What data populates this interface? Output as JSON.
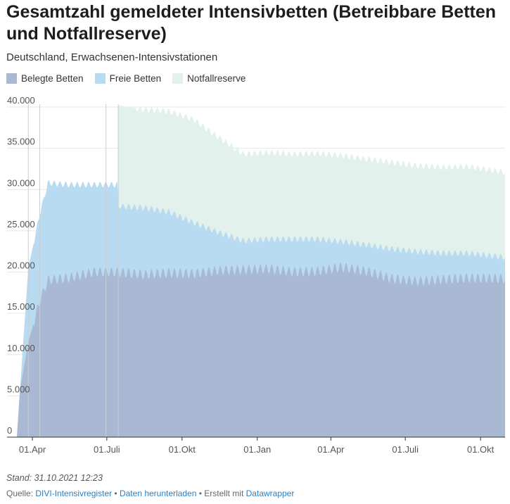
{
  "title": "Gesamtzahl gemeldeter Intensivbetten (Betreibbare Betten und Notfallreserve)",
  "subtitle": "Deutschland, Erwachsenen-Intensivstationen",
  "footer": {
    "stand": "Stand: 31.10.2021 12:23",
    "source_label": "Quelle:",
    "source_link": "DIVI-Intensivregister",
    "sep1": "•",
    "download_link": "Daten herunterladen",
    "sep2": "•",
    "created_label": "Erstellt mit",
    "created_link": "Datawrapper"
  },
  "colors": {
    "belegt": "#a9b8d3",
    "frei": "#b9dbf1",
    "notfall": "#e3f1ec",
    "grid": "#e6e6e6",
    "vline": "#c7cfd6"
  },
  "chart_data": {
    "type": "area",
    "stacked": true,
    "x_axis": "date",
    "xlim": [
      "2020-03-01",
      "2021-10-31"
    ],
    "ylim": [
      0,
      40000
    ],
    "y_ticks": [
      0,
      5000,
      10000,
      15000,
      20000,
      25000,
      30000,
      35000,
      40000
    ],
    "y_tick_labels": [
      "0",
      "5.000",
      "10.000",
      "15.000",
      "20.000",
      "25.000",
      "30.000",
      "35.000",
      "40.000"
    ],
    "x_ticks": [
      "2020-04-01",
      "2020-07-01",
      "2020-10-01",
      "2021-01-01",
      "2021-04-01",
      "2021-07-01",
      "2021-10-01"
    ],
    "x_tick_labels": [
      "01.Apr",
      "01.Juli",
      "01.Okt",
      "01.Jan",
      "01.Apr",
      "01.Juli",
      "01.Okt"
    ],
    "grid": "horizontal",
    "legend": "top-left",
    "vertical_markers": [
      "2020-03-27",
      "2020-04-10",
      "2020-06-30",
      "2020-07-15"
    ],
    "series": [
      {
        "name": "Belegte Betten",
        "color": "#a9b8d3",
        "points": [
          [
            "2020-03-13",
            0
          ],
          [
            "2020-03-17",
            5800
          ],
          [
            "2020-03-27",
            11500
          ],
          [
            "2020-04-10",
            16500
          ],
          [
            "2020-04-20",
            19000
          ],
          [
            "2020-05-15",
            19300
          ],
          [
            "2020-06-15",
            20000
          ],
          [
            "2020-07-15",
            20000
          ],
          [
            "2020-08-15",
            19700
          ],
          [
            "2020-09-15",
            19900
          ],
          [
            "2020-10-15",
            19800
          ],
          [
            "2020-11-15",
            20200
          ],
          [
            "2020-12-15",
            20300
          ],
          [
            "2021-01-15",
            20400
          ],
          [
            "2021-02-15",
            20000
          ],
          [
            "2021-03-15",
            20100
          ],
          [
            "2021-04-15",
            20600
          ],
          [
            "2021-05-15",
            20100
          ],
          [
            "2021-06-15",
            19200
          ],
          [
            "2021-07-15",
            18900
          ],
          [
            "2021-08-15",
            19100
          ],
          [
            "2021-09-15",
            19300
          ],
          [
            "2021-10-31",
            19200
          ]
        ]
      },
      {
        "name": "Freie Betten",
        "color": "#b9dbf1",
        "points": [
          [
            "2020-03-13",
            0
          ],
          [
            "2020-03-17",
            6000
          ],
          [
            "2020-03-27",
            20500
          ],
          [
            "2020-04-10",
            27000
          ],
          [
            "2020-04-20",
            30800
          ],
          [
            "2020-05-15",
            30600
          ],
          [
            "2020-06-15",
            30600
          ],
          [
            "2020-07-14",
            30600
          ],
          [
            "2020-07-15",
            28000
          ],
          [
            "2020-08-15",
            27800
          ],
          [
            "2020-09-15",
            27300
          ],
          [
            "2020-10-15",
            26000
          ],
          [
            "2020-11-15",
            24800
          ],
          [
            "2020-12-15",
            23800
          ],
          [
            "2021-01-15",
            24000
          ],
          [
            "2021-02-15",
            24000
          ],
          [
            "2021-03-15",
            24000
          ],
          [
            "2021-04-15",
            23700
          ],
          [
            "2021-05-15",
            23300
          ],
          [
            "2021-06-15",
            22800
          ],
          [
            "2021-07-15",
            22500
          ],
          [
            "2021-08-15",
            22300
          ],
          [
            "2021-09-15",
            22300
          ],
          [
            "2021-10-31",
            21800
          ]
        ]
      },
      {
        "name": "Notfallreserve",
        "color": "#e3f1ec",
        "points": [
          [
            "2020-07-15",
            40200
          ],
          [
            "2020-08-15",
            39700
          ],
          [
            "2020-09-15",
            39500
          ],
          [
            "2020-10-15",
            38500
          ],
          [
            "2020-11-15",
            36300
          ],
          [
            "2020-12-15",
            34300
          ],
          [
            "2021-01-15",
            34500
          ],
          [
            "2021-02-15",
            34300
          ],
          [
            "2021-03-15",
            34400
          ],
          [
            "2021-04-15",
            34100
          ],
          [
            "2021-05-15",
            33700
          ],
          [
            "2021-06-15",
            33300
          ],
          [
            "2021-07-15",
            32900
          ],
          [
            "2021-08-15",
            32700
          ],
          [
            "2021-09-15",
            32800
          ],
          [
            "2021-10-31",
            32100
          ]
        ]
      }
    ]
  }
}
